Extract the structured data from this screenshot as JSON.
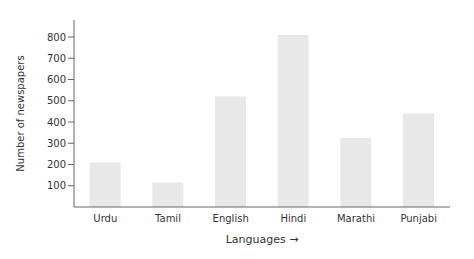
{
  "chart_data": {
    "type": "bar",
    "categories": [
      "Urdu",
      "Tamil",
      "English",
      "Hindi",
      "Marathi",
      "Punjabi"
    ],
    "values": [
      210,
      115,
      520,
      810,
      325,
      440
    ],
    "color": "#e8e8e8",
    "xlabel": "Languages →",
    "ylabel": "Number of newspapers",
    "ylim": [
      0,
      880
    ],
    "yticks": [
      100,
      200,
      300,
      400,
      500,
      600,
      700,
      800
    ],
    "grid": false
  }
}
